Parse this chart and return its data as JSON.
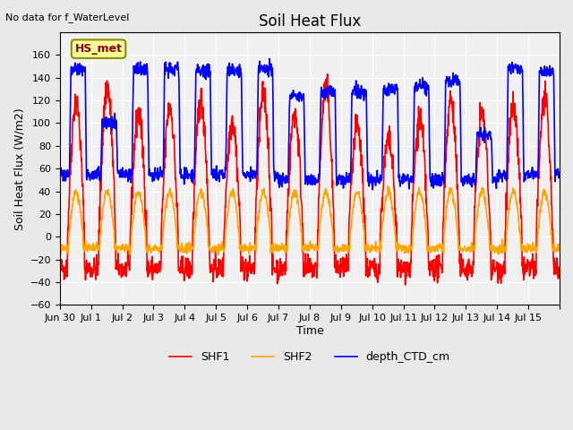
{
  "title": "Soil Heat Flux",
  "xlabel": "Time",
  "ylabel": "Soil Heat Flux (W/m2)",
  "top_left_text": "No data for f_WaterLevel",
  "legend_box_text": "HS_met",
  "legend_box_color": "#ffff99",
  "legend_box_edge": "#8B8B00",
  "legend_box_text_color": "#8B0000",
  "series_labels": [
    "SHF1",
    "SHF2",
    "depth_CTD_cm"
  ],
  "series_colors": [
    "#ff0000",
    "#ffa500",
    "#0000ff"
  ],
  "ylim": [
    -60,
    180
  ],
  "yticks": [
    -60,
    -40,
    -20,
    0,
    20,
    40,
    60,
    80,
    100,
    120,
    140,
    160
  ],
  "background_color": "#e8e8e8",
  "plot_bg_color": "#f0f0f0",
  "grid_color": "#ffffff",
  "xtick_positions": [
    0,
    1,
    2,
    3,
    4,
    5,
    6,
    7,
    8,
    9,
    10,
    11,
    12,
    13,
    14,
    15,
    16
  ],
  "xtick_labels": [
    "Jun 30",
    "Jul 1",
    "Jul 2",
    "Jul 3",
    "Jul 4",
    "Jul 5",
    "Jul 6",
    "Jul 7",
    "Jul 8",
    "Jul 9",
    "Jul 10",
    "Jul 11",
    "Jul 12",
    "Jul 13",
    "Jul 14",
    "Jul 15",
    ""
  ],
  "figsize": [
    6.4,
    4.8
  ],
  "dpi": 100,
  "line_width": 1.2,
  "shf1_day_scale": [
    1.0,
    1.1,
    0.9,
    0.95,
    1.0,
    0.85,
    1.05,
    0.9,
    1.1,
    0.8,
    0.7,
    0.85,
    1.0,
    0.9,
    0.95,
    1.0
  ],
  "ctd_peaks": [
    148,
    100,
    147,
    147,
    146,
    146,
    147,
    125,
    128,
    128,
    130,
    133,
    138,
    90,
    148,
    145
  ],
  "ctd_lows": [
    55,
    55,
    55,
    55,
    55,
    55,
    55,
    50,
    50,
    50,
    50,
    50,
    50,
    50,
    55,
    55
  ]
}
